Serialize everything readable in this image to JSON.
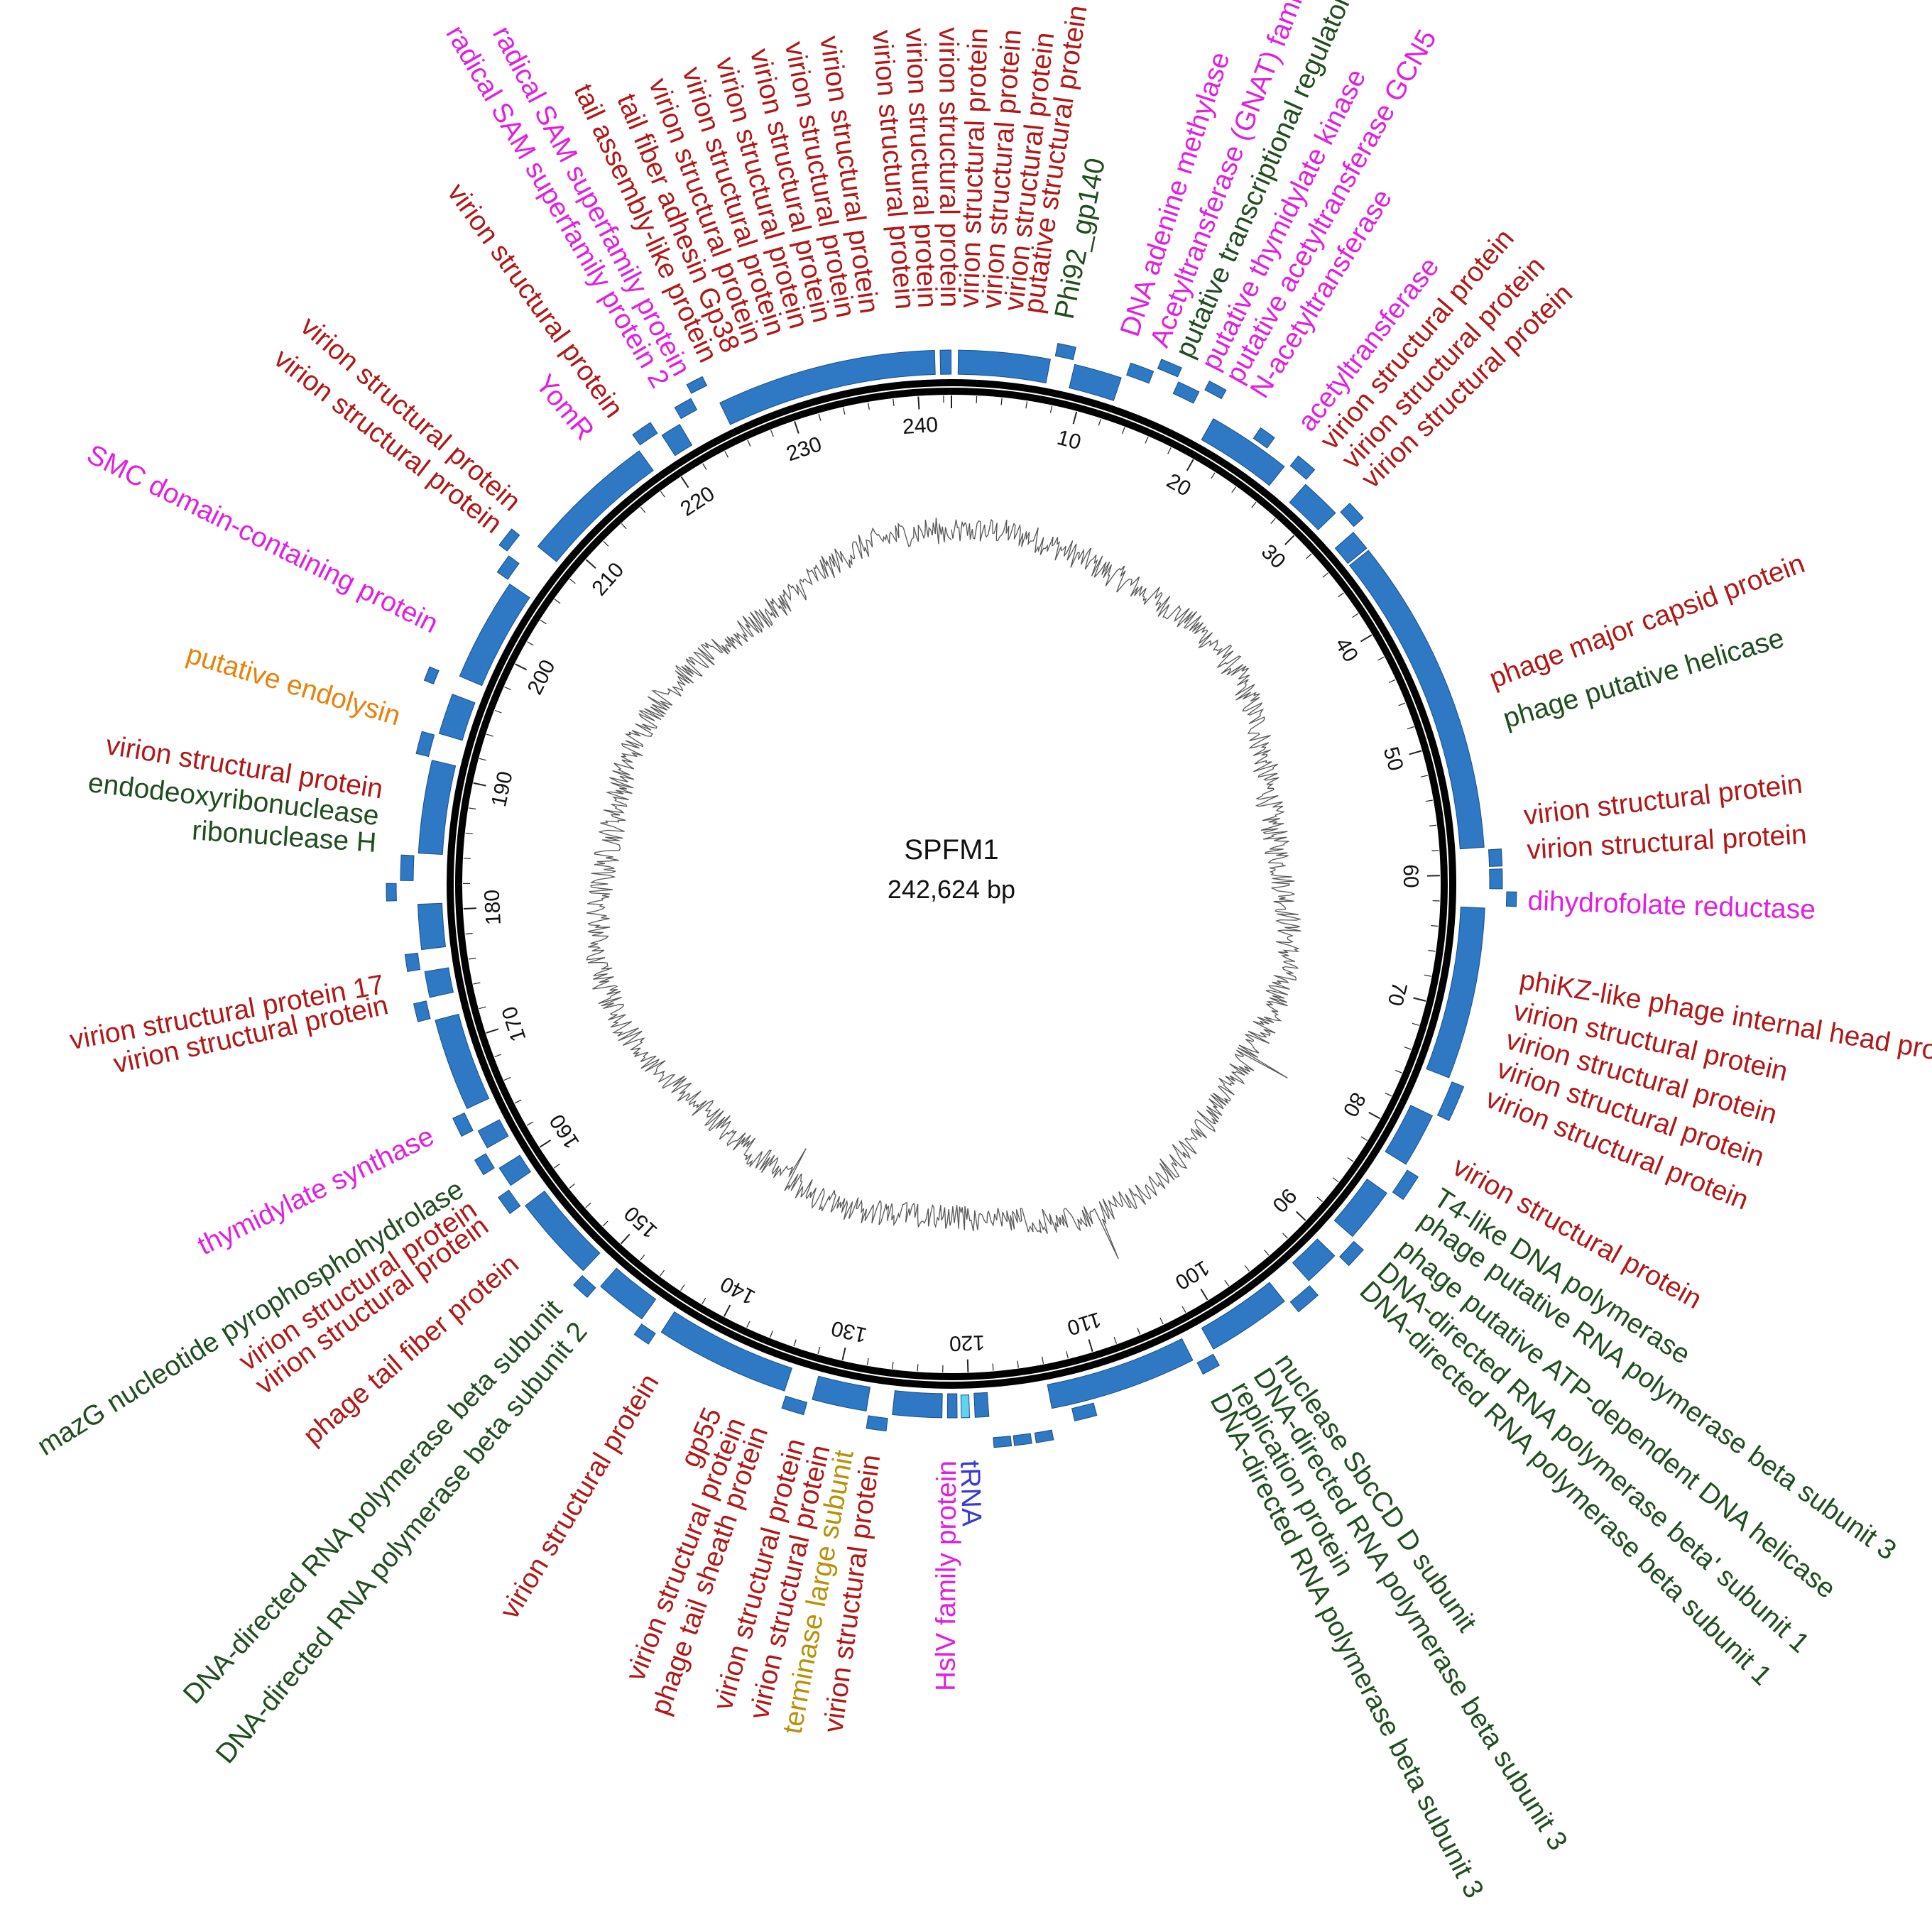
{
  "genome": {
    "name": "SPFM1",
    "length_label": "242,624 bp",
    "length_bp": 242624
  },
  "colors": {
    "virion": "#b01818",
    "enzyme": "#e020e0",
    "dna": "#1e4d1e",
    "endolysin": "#e8820a",
    "terminase": "#b8900a",
    "trna": "#3a3ad0",
    "feature": "#2e78c4",
    "feature_edge": "#1b4f86",
    "backbone": "#000000",
    "gc_plot": "#555555"
  },
  "scale_ticks_kb": [
    10,
    20,
    30,
    40,
    50,
    60,
    70,
    80,
    90,
    100,
    110,
    120,
    130,
    140,
    150,
    160,
    170,
    180,
    190,
    200,
    210,
    220,
    230,
    240
  ],
  "labels": [
    {
      "text": "putative structural protein",
      "pos_kb": 5.6,
      "cat": "virion"
    },
    {
      "text": "Phi92_gp140",
      "pos_kb": 7.7,
      "cat": "dna"
    },
    {
      "text": "DNA adenine methylase",
      "pos_kb": 12.2,
      "cat": "enzyme"
    },
    {
      "text": "Acetyltransferase (GNAT) family protein",
      "pos_kb": 14.3,
      "cat": "enzyme"
    },
    {
      "text": "putative transcriptional regulator",
      "pos_kb": 16.1,
      "cat": "dna"
    },
    {
      "text": "putative thymidylate kinase",
      "pos_kb": 18.0,
      "cat": "enzyme"
    },
    {
      "text": "putative acetyltransferase GCN5",
      "pos_kb": 19.8,
      "cat": "enzyme"
    },
    {
      "text": "N-acetyltransferase",
      "pos_kb": 21.7,
      "cat": "enzyme"
    },
    {
      "text": "acetyltransferase",
      "pos_kb": 25.5,
      "cat": "enzyme"
    },
    {
      "text": "virion structural protein",
      "pos_kb": 27.4,
      "cat": "virion"
    },
    {
      "text": "virion structural protein",
      "pos_kb": 29.3,
      "cat": "virion"
    },
    {
      "text": "virion structural protein",
      "pos_kb": 31.1,
      "cat": "virion"
    },
    {
      "text": "phage major capsid protein",
      "pos_kb": 46.8,
      "cat": "virion"
    },
    {
      "text": "phage putative helicase",
      "pos_kb": 49.6,
      "cat": "dna"
    },
    {
      "text": "virion structural protein",
      "pos_kb": 56.2,
      "cat": "virion"
    },
    {
      "text": "virion structural protein",
      "pos_kb": 58.5,
      "cat": "virion"
    },
    {
      "text": "dihydrofolate reductase",
      "pos_kb": 61.9,
      "cat": "enzyme"
    },
    {
      "text": "phiKZ-like phage internal head proteins",
      "pos_kb": 67.2,
      "cat": "virion"
    },
    {
      "text": "virion structural protein",
      "pos_kb": 69.3,
      "cat": "virion"
    },
    {
      "text": "virion structural protein",
      "pos_kb": 71.3,
      "cat": "virion"
    },
    {
      "text": "virion structural protein",
      "pos_kb": 73.3,
      "cat": "virion"
    },
    {
      "text": "virion structural protein",
      "pos_kb": 75.4,
      "cat": "virion"
    },
    {
      "text": "virion structural protein",
      "pos_kb": 80.4,
      "cat": "virion"
    },
    {
      "text": "T4-like DNA polymerase",
      "pos_kb": 82.8,
      "cat": "dna"
    },
    {
      "text": "phage putative RNA polymerase beta subunit 3",
      "pos_kb": 84.6,
      "cat": "dna"
    },
    {
      "text": "phage putative ATP-dependent DNA helicase",
      "pos_kb": 86.9,
      "cat": "dna"
    },
    {
      "text": "DNA-directed RNA polymerase beta' subunit 1",
      "pos_kb": 88.9,
      "cat": "dna"
    },
    {
      "text": "DNA-directed RNA polymerase beta subunit 1",
      "pos_kb": 90.6,
      "cat": "dna"
    },
    {
      "text": "nuclease SbcCD D subunit",
      "pos_kb": 97.9,
      "cat": "dna"
    },
    {
      "text": "DNA-directed RNA polymerase beta subunit 3",
      "pos_kb": 99.6,
      "cat": "dna"
    },
    {
      "text": "replication protein",
      "pos_kb": 101.3,
      "cat": "dna"
    },
    {
      "text": "DNA-directed RNA polymerase beta subunit 3",
      "pos_kb": 102.9,
      "cat": "dna"
    },
    {
      "text": "tRNA",
      "pos_kb": 120.2,
      "cat": "trna"
    },
    {
      "text": "HslV family protein",
      "pos_kb": 121.5,
      "cat": "enzyme"
    },
    {
      "text": "virion structural protein",
      "pos_kb": 126.6,
      "cat": "virion"
    },
    {
      "text": "terminase large subunit",
      "pos_kb": 128.4,
      "cat": "terminase"
    },
    {
      "text": "virion structural protein",
      "pos_kb": 130.0,
      "cat": "virion"
    },
    {
      "text": "virion structural protein",
      "pos_kb": 131.7,
      "cat": "virion"
    },
    {
      "text": "phage tail sheath protein",
      "pos_kb": 134.3,
      "cat": "virion"
    },
    {
      "text": "virion structural protein",
      "pos_kb": 135.9,
      "cat": "virion"
    },
    {
      "text": "gp55",
      "pos_kb": 137.6,
      "cat": "virion"
    },
    {
      "text": "virion structural protein",
      "pos_kb": 142.3,
      "cat": "virion"
    },
    {
      "text": "DNA-directed RNA polymerase beta subunit 2",
      "pos_kb": 148.1,
      "cat": "dna"
    },
    {
      "text": "DNA-directed RNA polymerase beta subunit",
      "pos_kb": 150.3,
      "cat": "dna"
    },
    {
      "text": "phage tail fiber protein",
      "pos_kb": 154.4,
      "cat": "virion"
    },
    {
      "text": "virion structural protein",
      "pos_kb": 157.6,
      "cat": "virion"
    },
    {
      "text": "virion structural protein",
      "pos_kb": 158.9,
      "cat": "virion"
    },
    {
      "text": "mazG nucleotide pyrophosphohydrolase",
      "pos_kb": 160.5,
      "cat": "dna"
    },
    {
      "text": "thymidylate synthase",
      "pos_kb": 164.5,
      "cat": "enzyme"
    },
    {
      "text": "virion structural protein",
      "pos_kb": 173.7,
      "cat": "virion"
    },
    {
      "text": "virion structural protein 17",
      "pos_kb": 175.1,
      "cat": "virion"
    },
    {
      "text": "ribonuclease H",
      "pos_kb": 184.6,
      "cat": "dna"
    },
    {
      "text": "endodeoxyribonuclease",
      "pos_kb": 186.4,
      "cat": "dna"
    },
    {
      "text": "virion structural protein",
      "pos_kb": 188.2,
      "cat": "virion"
    },
    {
      "text": "putative endolysin",
      "pos_kb": 193.2,
      "cat": "endolysin"
    },
    {
      "text": "SMC domain-containing protein",
      "pos_kb": 199.8,
      "cat": "enzyme"
    },
    {
      "text": "virion structural protein",
      "pos_kb": 207.6,
      "cat": "virion"
    },
    {
      "text": "virion structural protein",
      "pos_kb": 209.5,
      "cat": "virion"
    },
    {
      "text": "YomR",
      "pos_kb": 216.2,
      "cat": "enzyme"
    },
    {
      "text": "virion structural protein",
      "pos_kb": 218.6,
      "cat": "virion"
    },
    {
      "text": "radical SAM superfamily protein 2",
      "pos_kb": 222.2,
      "cat": "enzyme"
    },
    {
      "text": "radical SAM superfamily protein",
      "pos_kb": 223.8,
      "cat": "enzyme"
    },
    {
      "text": "tail assembly-like protein",
      "pos_kb": 225.8,
      "cat": "virion"
    },
    {
      "text": "tail fiber adhesin Gp38",
      "pos_kb": 227.4,
      "cat": "virion"
    },
    {
      "text": "virion structural protein",
      "pos_kb": 229.0,
      "cat": "virion"
    },
    {
      "text": "virion structural protein",
      "pos_kb": 230.6,
      "cat": "virion"
    },
    {
      "text": "virion structural protein",
      "pos_kb": 232.2,
      "cat": "virion"
    },
    {
      "text": "virion structural protein",
      "pos_kb": 233.8,
      "cat": "virion"
    },
    {
      "text": "virion structural protein",
      "pos_kb": 235.4,
      "cat": "virion"
    },
    {
      "text": "virion structural protein",
      "pos_kb": 237.0,
      "cat": "virion"
    },
    {
      "text": "virion structural protein",
      "pos_kb": 239.4,
      "cat": "virion"
    },
    {
      "text": "virion structural protein",
      "pos_kb": 240.9,
      "cat": "virion"
    },
    {
      "text": "virion structural protein",
      "pos_kb": 242.4,
      "cat": "virion"
    },
    {
      "text": "virion structural protein",
      "pos_kb": 1.3,
      "cat": "virion"
    },
    {
      "text": "virion structural protein",
      "pos_kb": 2.8,
      "cat": "virion"
    },
    {
      "text": "virion structural protein",
      "pos_kb": 4.3,
      "cat": "virion"
    }
  ],
  "features": [
    {
      "s": 0.5,
      "e": 7.2,
      "t": 0
    },
    {
      "s": 7.5,
      "e": 8.8,
      "t": 1
    },
    {
      "s": 9.0,
      "e": 12.5,
      "t": 0
    },
    {
      "s": 12.8,
      "e": 14.5,
      "t": 1
    },
    {
      "s": 14.7,
      "e": 16.2,
      "t": 2
    },
    {
      "s": 16.4,
      "e": 18.0,
      "t": 1
    },
    {
      "s": 18.3,
      "e": 19.6,
      "t": 2
    },
    {
      "s": 19.8,
      "e": 26.0,
      "t": 0
    },
    {
      "s": 23.0,
      "e": 24.2,
      "t": 1
    },
    {
      "s": 26.3,
      "e": 27.8,
      "t": 1
    },
    {
      "s": 28.0,
      "e": 31.0,
      "t": 0
    },
    {
      "s": 31.2,
      "e": 32.6,
      "t": 1
    },
    {
      "s": 32.9,
      "e": 34.4,
      "t": 0
    },
    {
      "s": 34.6,
      "e": 58.0,
      "t": 0
    },
    {
      "s": 58.2,
      "e": 59.4,
      "t": 1
    },
    {
      "s": 59.6,
      "e": 61.0,
      "t": 1
    },
    {
      "s": 61.2,
      "e": 62.2,
      "t": 2
    },
    {
      "s": 62.4,
      "e": 75.0,
      "t": 0
    },
    {
      "s": 75.2,
      "e": 77.8,
      "t": 1
    },
    {
      "s": 78.0,
      "e": 82.0,
      "t": 0
    },
    {
      "s": 82.3,
      "e": 84.2,
      "t": 1
    },
    {
      "s": 84.5,
      "e": 88.5,
      "t": 0
    },
    {
      "s": 88.7,
      "e": 90.2,
      "t": 1
    },
    {
      "s": 90.4,
      "e": 93.0,
      "t": 0
    },
    {
      "s": 93.2,
      "e": 95.0,
      "t": 1
    },
    {
      "s": 95.3,
      "e": 101.5,
      "t": 0
    },
    {
      "s": 101.7,
      "e": 103.0,
      "t": 1
    },
    {
      "s": 103.2,
      "e": 114.0,
      "t": 0
    },
    {
      "s": 111.0,
      "e": 112.6,
      "t": 1
    },
    {
      "s": 114.3,
      "e": 115.5,
      "t": 2
    },
    {
      "s": 115.8,
      "e": 117.0,
      "t": 2
    },
    {
      "s": 117.2,
      "e": 118.4,
      "t": 2
    },
    {
      "s": 118.6,
      "e": 119.6,
      "t": 0
    },
    {
      "s": 120.0,
      "e": 120.6,
      "t": 3
    },
    {
      "s": 120.9,
      "e": 121.6,
      "t": 0
    },
    {
      "s": 122.0,
      "e": 125.6,
      "t": 0
    },
    {
      "s": 125.9,
      "e": 127.3,
      "t": 1
    },
    {
      "s": 127.5,
      "e": 131.5,
      "t": 0
    },
    {
      "s": 131.8,
      "e": 133.4,
      "t": 1
    },
    {
      "s": 133.6,
      "e": 143.5,
      "t": 0
    },
    {
      "s": 143.8,
      "e": 145.0,
      "t": 1
    },
    {
      "s": 145.2,
      "e": 149.0,
      "t": 0
    },
    {
      "s": 149.2,
      "e": 150.5,
      "t": 1
    },
    {
      "s": 150.7,
      "e": 157.0,
      "t": 0
    },
    {
      "s": 157.2,
      "e": 158.6,
      "t": 1
    },
    {
      "s": 158.8,
      "e": 160.3,
      "t": 0
    },
    {
      "s": 160.5,
      "e": 161.7,
      "t": 1
    },
    {
      "s": 162.0,
      "e": 163.4,
      "t": 0
    },
    {
      "s": 163.6,
      "e": 165.0,
      "t": 1
    },
    {
      "s": 165.2,
      "e": 172.0,
      "t": 0
    },
    {
      "s": 172.2,
      "e": 173.5,
      "t": 1
    },
    {
      "s": 173.7,
      "e": 175.6,
      "t": 0
    },
    {
      "s": 175.8,
      "e": 177.0,
      "t": 1
    },
    {
      "s": 177.2,
      "e": 180.5,
      "t": 0
    },
    {
      "s": 180.8,
      "e": 182.0,
      "t": 2
    },
    {
      "s": 182.2,
      "e": 184.0,
      "t": 1
    },
    {
      "s": 184.2,
      "e": 191.0,
      "t": 0
    },
    {
      "s": 191.2,
      "e": 192.8,
      "t": 1
    },
    {
      "s": 193.0,
      "e": 196.0,
      "t": 0
    },
    {
      "s": 196.2,
      "e": 197.2,
      "t": 2
    },
    {
      "s": 197.4,
      "e": 205.0,
      "t": 0
    },
    {
      "s": 205.2,
      "e": 206.6,
      "t": 1
    },
    {
      "s": 206.8,
      "e": 208.2,
      "t": 2
    },
    {
      "s": 208.4,
      "e": 218.5,
      "t": 0
    },
    {
      "s": 218.8,
      "e": 220.3,
      "t": 1
    },
    {
      "s": 220.5,
      "e": 222.0,
      "t": 0
    },
    {
      "s": 222.3,
      "e": 223.6,
      "t": 1
    },
    {
      "s": 223.8,
      "e": 225.0,
      "t": 2
    },
    {
      "s": 225.3,
      "e": 241.4,
      "t": 0
    },
    {
      "s": 241.8,
      "e": 242.6,
      "t": 0
    }
  ]
}
